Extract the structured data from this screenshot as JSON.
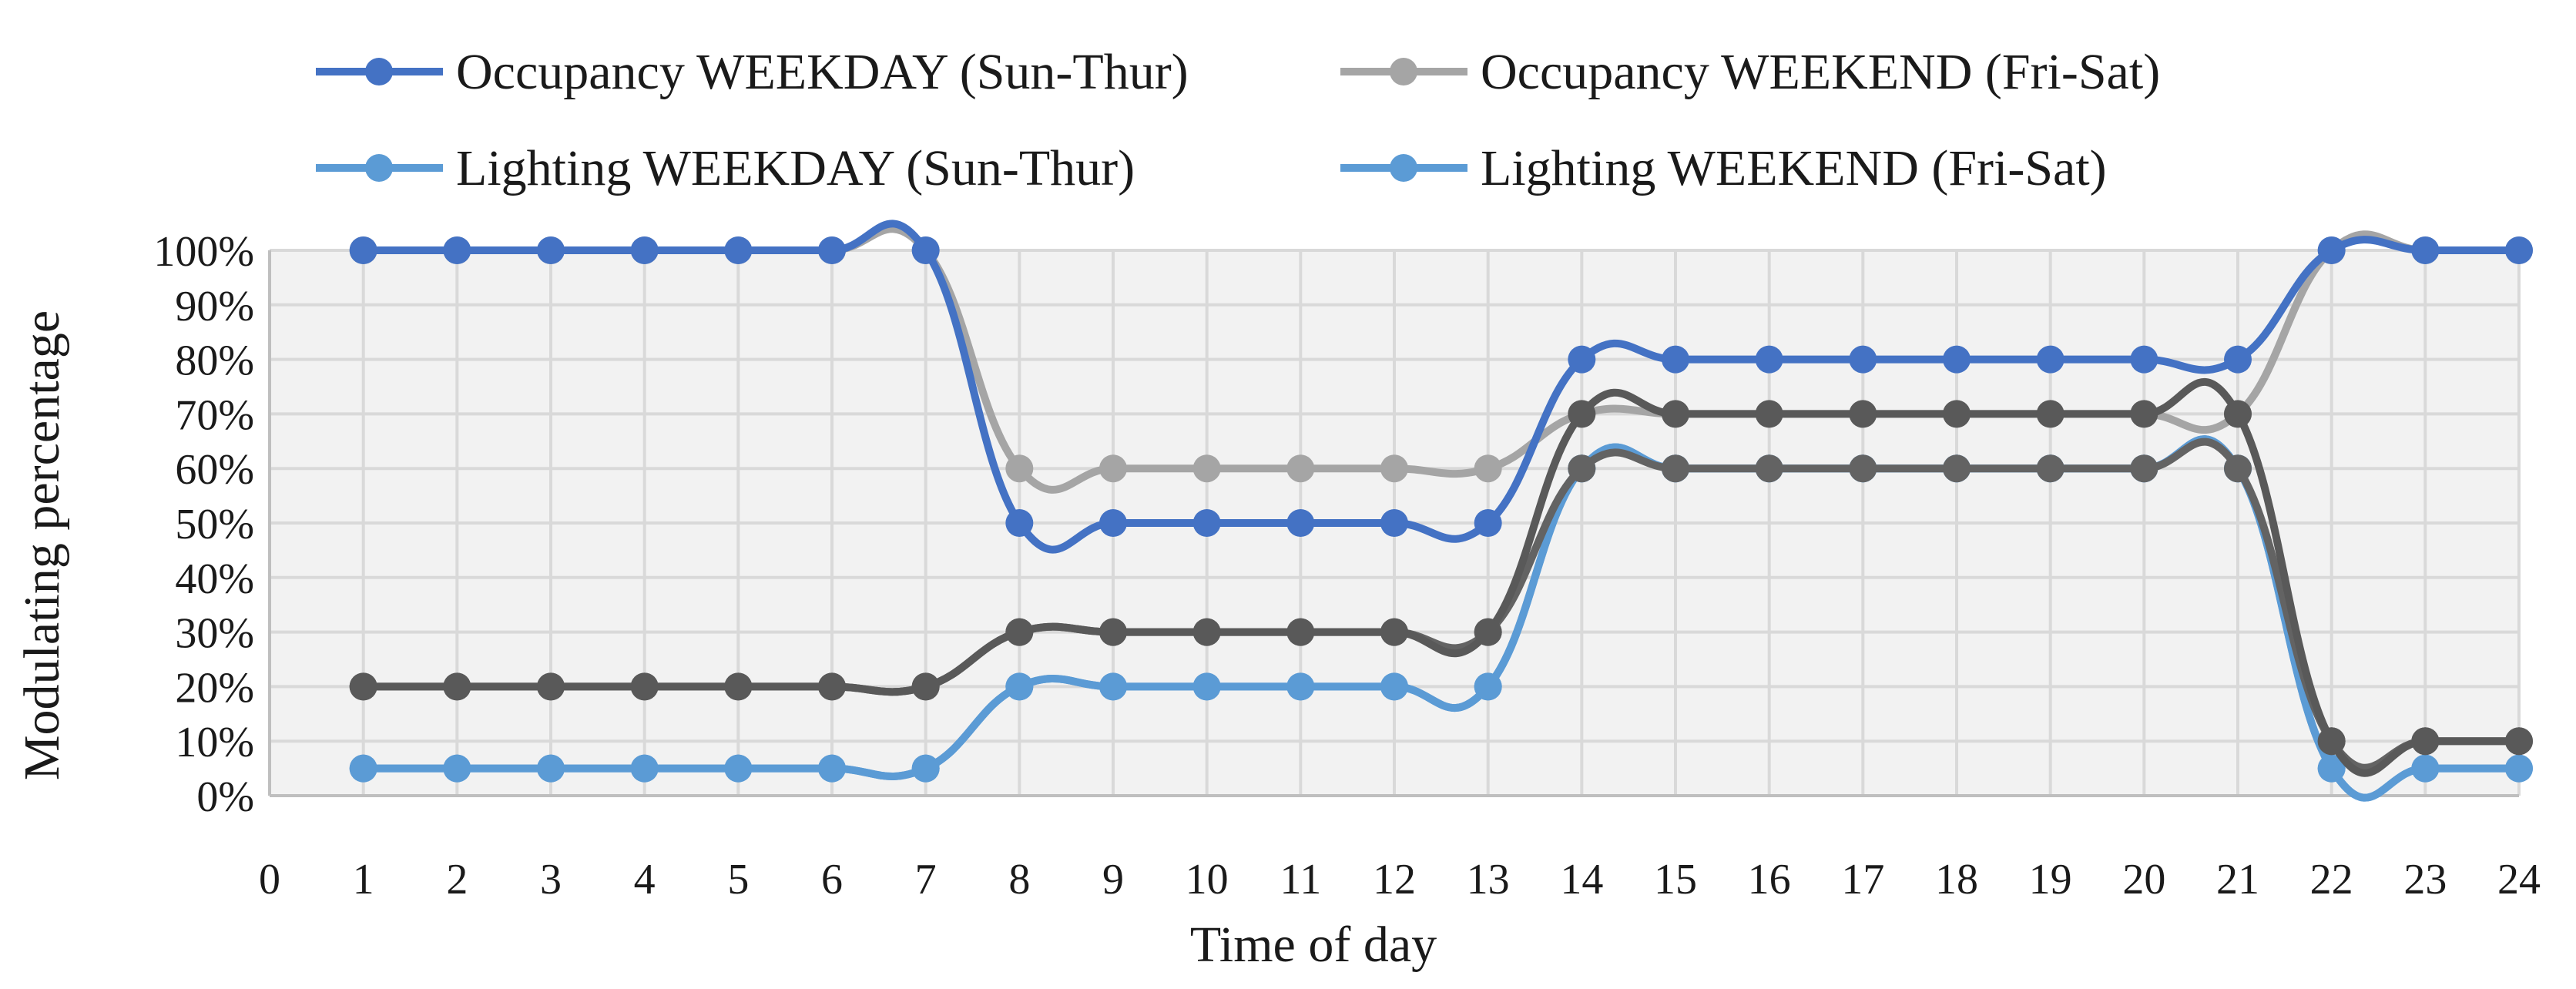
{
  "chart_data": {
    "type": "line",
    "title": "",
    "xlabel": "Time of day",
    "ylabel": "Modulating percentage",
    "xlim": [
      0,
      24
    ],
    "ylim": [
      0,
      100
    ],
    "x_ticks": [
      "0",
      "1",
      "2",
      "3",
      "4",
      "5",
      "6",
      "7",
      "8",
      "9",
      "10",
      "11",
      "12",
      "13",
      "14",
      "15",
      "16",
      "17",
      "18",
      "19",
      "20",
      "21",
      "22",
      "23",
      "24"
    ],
    "y_ticks": [
      "0%",
      "10%",
      "20%",
      "30%",
      "40%",
      "50%",
      "60%",
      "70%",
      "80%",
      "90%",
      "100%"
    ],
    "grid": true,
    "legend_position": "top",
    "x": [
      1,
      2,
      3,
      4,
      5,
      6,
      7,
      8,
      9,
      10,
      11,
      12,
      13,
      14,
      15,
      16,
      17,
      18,
      19,
      20,
      21,
      22,
      23,
      24
    ],
    "series": [
      {
        "name": "Occupancy WEEKDAY (Sun-Thur)",
        "color": "#4472c4",
        "values": [
          100,
          100,
          100,
          100,
          100,
          100,
          100,
          50,
          50,
          50,
          50,
          50,
          50,
          80,
          80,
          80,
          80,
          80,
          80,
          80,
          80,
          100,
          100,
          100
        ]
      },
      {
        "name": "Occupancy WEEKEND (Fri-Sat)",
        "color": "#a5a5a5",
        "values": [
          100,
          100,
          100,
          100,
          100,
          100,
          100,
          60,
          60,
          60,
          60,
          60,
          60,
          70,
          70,
          70,
          70,
          70,
          70,
          70,
          70,
          100,
          100,
          100
        ]
      },
      {
        "name": "Lighting WEEKDAY (Sun-Thur)",
        "color": "#5b9bd5",
        "values": [
          5,
          5,
          5,
          5,
          5,
          5,
          5,
          20,
          20,
          20,
          20,
          20,
          20,
          60,
          60,
          60,
          60,
          60,
          60,
          60,
          60,
          5,
          5,
          5
        ]
      },
      {
        "name": "Lighting WEEKEND (Fri-Sat)",
        "color": "#5b9bd5",
        "values": [
          5,
          5,
          5,
          5,
          5,
          5,
          5,
          20,
          20,
          20,
          20,
          20,
          20,
          60,
          60,
          60,
          60,
          60,
          60,
          60,
          60,
          5,
          5,
          5
        ]
      },
      {
        "name": "",
        "color": "#595959",
        "values": [
          20,
          20,
          20,
          20,
          20,
          20,
          20,
          30,
          30,
          30,
          30,
          30,
          30,
          70,
          70,
          70,
          70,
          70,
          70,
          70,
          70,
          10,
          10,
          10
        ]
      },
      {
        "name": "",
        "color": "#636363",
        "values": [
          20,
          20,
          20,
          20,
          20,
          20,
          20,
          30,
          30,
          30,
          30,
          30,
          30,
          60,
          60,
          60,
          60,
          60,
          60,
          60,
          60,
          10,
          10,
          10
        ]
      }
    ]
  }
}
